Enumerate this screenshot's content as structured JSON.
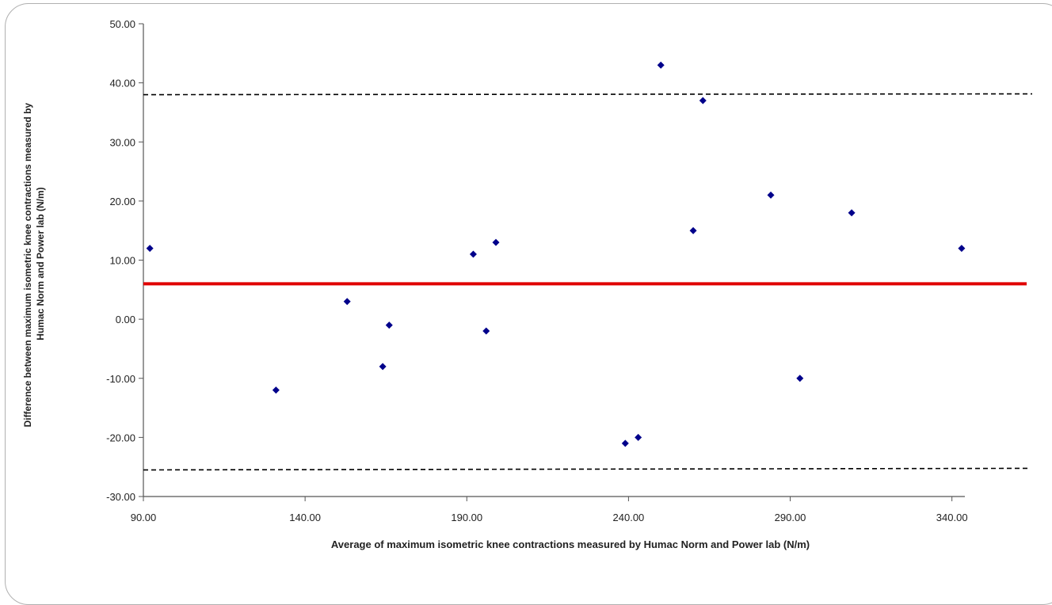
{
  "chart_data": {
    "type": "scatter",
    "xlabel": "Average of maximum isometric knee contractions measured by Humac Norm and Power lab (N/m)",
    "ylabel": "Difference between maximum isometric knee contractions measured by Humac Norm and Power lab (N/m)",
    "xlim": [
      90,
      344
    ],
    "ylim": [
      -30,
      50
    ],
    "x_ticks": [
      "90.00",
      "140.00",
      "190.00",
      "240.00",
      "290.00",
      "340.00"
    ],
    "y_ticks": [
      "50.00",
      "40.00",
      "30.00",
      "20.00",
      "10.00",
      "0.00",
      "-10.00",
      "-20.00",
      "-30.00"
    ],
    "grid": false,
    "legend": "none",
    "points": [
      {
        "x": 92,
        "y": 12
      },
      {
        "x": 131,
        "y": -12
      },
      {
        "x": 153,
        "y": 3
      },
      {
        "x": 164,
        "y": -8
      },
      {
        "x": 166,
        "y": -1
      },
      {
        "x": 192,
        "y": 11
      },
      {
        "x": 196,
        "y": -2
      },
      {
        "x": 199,
        "y": 13
      },
      {
        "x": 239,
        "y": -21
      },
      {
        "x": 243,
        "y": -20
      },
      {
        "x": 250,
        "y": 43
      },
      {
        "x": 260,
        "y": 15
      },
      {
        "x": 263,
        "y": 37
      },
      {
        "x": 284,
        "y": 21
      },
      {
        "x": 293,
        "y": -10
      },
      {
        "x": 309,
        "y": 18
      },
      {
        "x": 343,
        "y": 12
      }
    ],
    "mean_line": 6,
    "upper_limit": 38,
    "lower_limit": -25.5,
    "colors": {
      "points": "#00008b",
      "mean_line": "#e00000",
      "limit_lines": "#000000",
      "axes": "#555555"
    }
  }
}
